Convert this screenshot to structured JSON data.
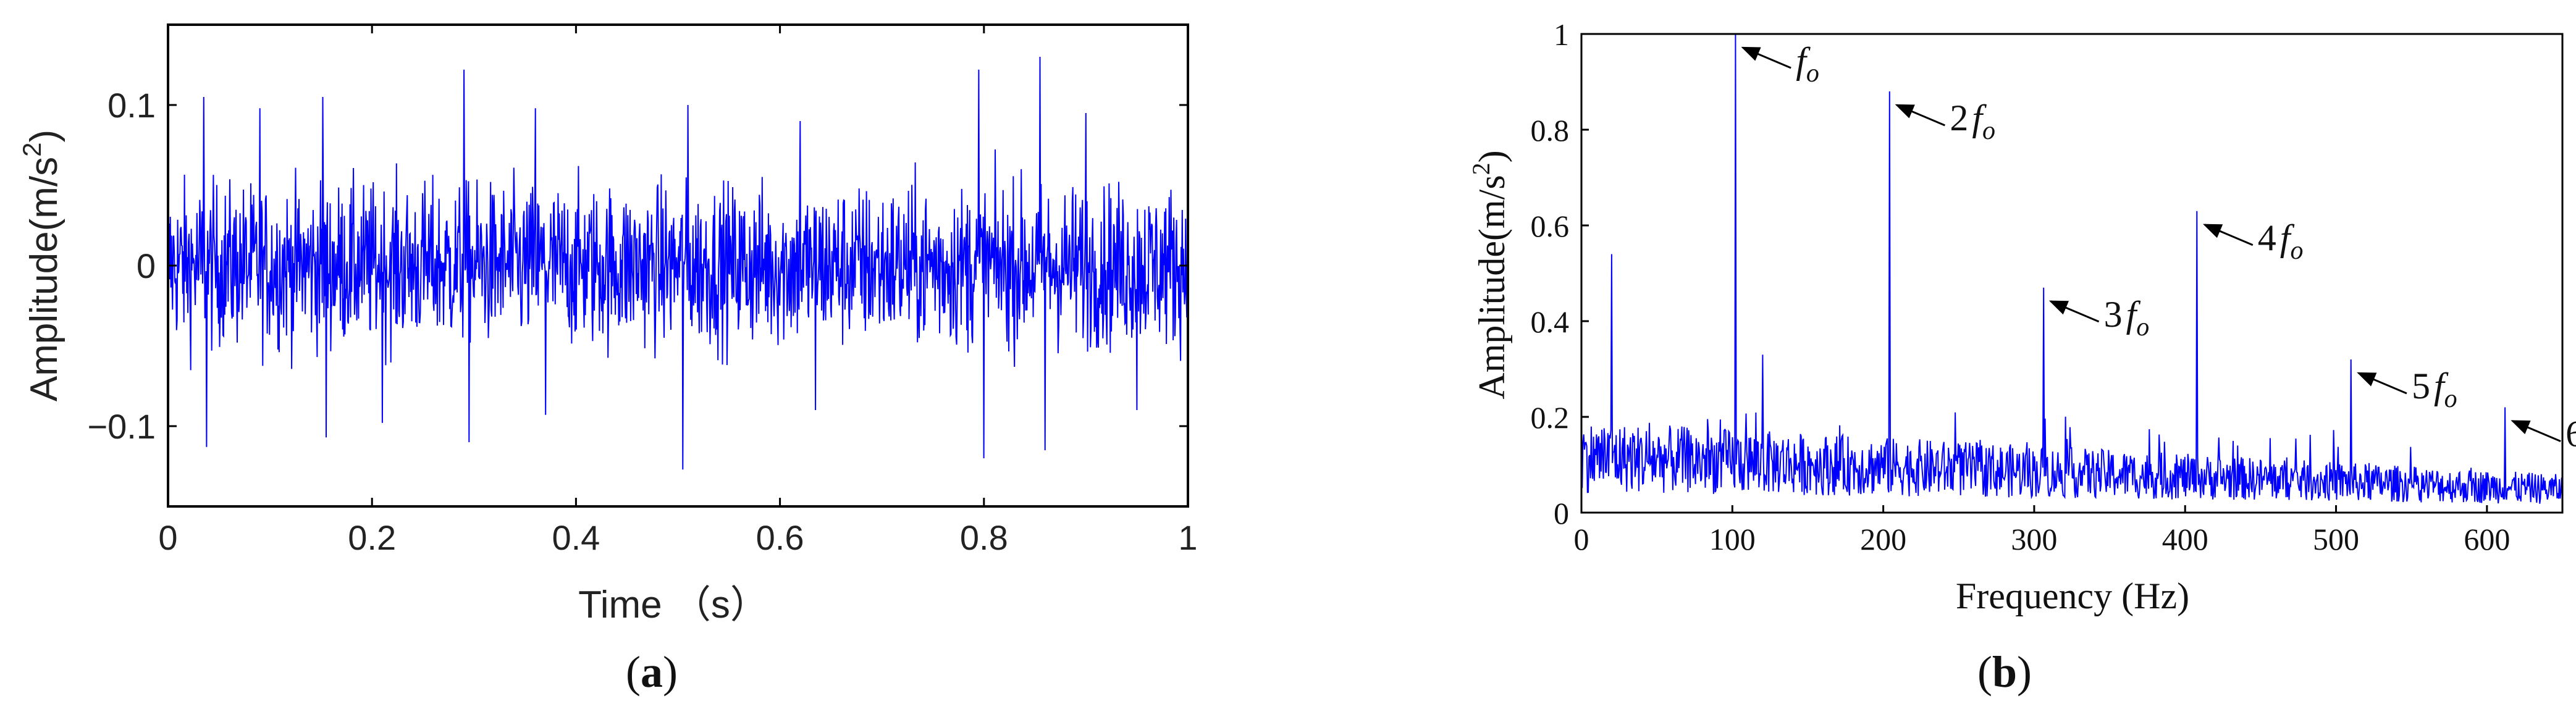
{
  "panels": {
    "a": {
      "caption_paren_open": "(",
      "caption_letter": "a",
      "caption_paren_close": ")"
    },
    "b": {
      "caption_paren_open": "(",
      "caption_letter": "b",
      "caption_paren_close": ")"
    }
  },
  "colors": {
    "signal": "#0000ff",
    "axis": "#000000",
    "annotation": "#000000"
  },
  "chart_data": [
    {
      "id": "a",
      "type": "line",
      "title": "",
      "xlabel": "Time （s）",
      "ylabel_prefix": "Amplitude(m/s",
      "ylabel_sup": "2",
      "ylabel_suffix": ")",
      "xlim": [
        0,
        1
      ],
      "ylim": [
        -0.15,
        0.15
      ],
      "xticks": [
        0,
        0.2,
        0.4,
        0.6,
        0.8,
        1
      ],
      "xtick_labels": [
        "0",
        "0.2",
        "0.4",
        "0.6",
        "0.8",
        "1"
      ],
      "yticks": [
        -0.1,
        0,
        0.1
      ],
      "ytick_labels": [
        "−0.1",
        "0",
        "0.1"
      ],
      "grid": false,
      "series": [
        {
          "description_values": "dense zero-mean vibration signal; typical envelope about ±0.06, impulsive peaks",
          "peaks": [
            [
              0.035,
              0.105
            ],
            [
              0.038,
              -0.113
            ],
            [
              0.09,
              0.098
            ],
            [
              0.152,
              0.105
            ],
            [
              0.155,
              -0.107
            ],
            [
              0.21,
              -0.098
            ],
            [
              0.29,
              0.122
            ],
            [
              0.295,
              -0.11
            ],
            [
              0.36,
              0.098
            ],
            [
              0.37,
              -0.093
            ],
            [
              0.505,
              -0.127
            ],
            [
              0.51,
              0.1
            ],
            [
              0.62,
              0.09
            ],
            [
              0.635,
              -0.09
            ],
            [
              0.795,
              0.122
            ],
            [
              0.8,
              -0.12
            ],
            [
              0.855,
              0.13
            ],
            [
              0.86,
              -0.115
            ],
            [
              0.9,
              0.095
            ],
            [
              0.95,
              -0.09
            ]
          ],
          "approx_noise_amplitude": 0.055
        }
      ]
    },
    {
      "id": "b",
      "type": "line",
      "title": "",
      "xlabel": "Frequency (Hz)",
      "ylabel_prefix": "Amplitude(m/s",
      "ylabel_sup": "2",
      "ylabel_suffix": ")",
      "xlim": [
        0,
        650
      ],
      "ylim": [
        0,
        1
      ],
      "xticks": [
        0,
        100,
        200,
        300,
        400,
        500,
        600
      ],
      "xtick_labels": [
        "0",
        "100",
        "200",
        "300",
        "400",
        "500",
        "600"
      ],
      "yticks": [
        0,
        0.2,
        0.4,
        0.6,
        0.8,
        1
      ],
      "ytick_labels": [
        "0",
        "0.2",
        "0.4",
        "0.6",
        "0.8",
        "1"
      ],
      "grid": false,
      "series": [
        {
          "description_values": "amplitude spectrum with harmonic peaks of fo and noise floor ~0.1 decreasing to ~0.05",
          "peaks": [
            [
              20,
              0.54
            ],
            [
              102,
              1.0
            ],
            [
              120,
              0.33
            ],
            [
              204,
              0.88
            ],
            [
              306,
              0.47
            ],
            [
              408,
              0.63
            ],
            [
              510,
              0.32
            ],
            [
              612,
              0.22
            ]
          ],
          "noise_floor_start": 0.12,
          "noise_floor_end": 0.05
        }
      ],
      "annotations": [
        {
          "prefix": "",
          "f": "f",
          "sub": "o",
          "x": 102,
          "y": 1.0
        },
        {
          "prefix": "2",
          "f": "f",
          "sub": "o",
          "x": 204,
          "y": 0.88
        },
        {
          "prefix": "3",
          "f": "f",
          "sub": "o",
          "x": 306,
          "y": 0.47
        },
        {
          "prefix": "4",
          "f": "f",
          "sub": "o",
          "x": 408,
          "y": 0.63
        },
        {
          "prefix": "5",
          "f": "f",
          "sub": "o",
          "x": 510,
          "y": 0.32
        },
        {
          "prefix": "6",
          "f": "f",
          "sub": "o",
          "x": 612,
          "y": 0.22
        }
      ]
    }
  ]
}
